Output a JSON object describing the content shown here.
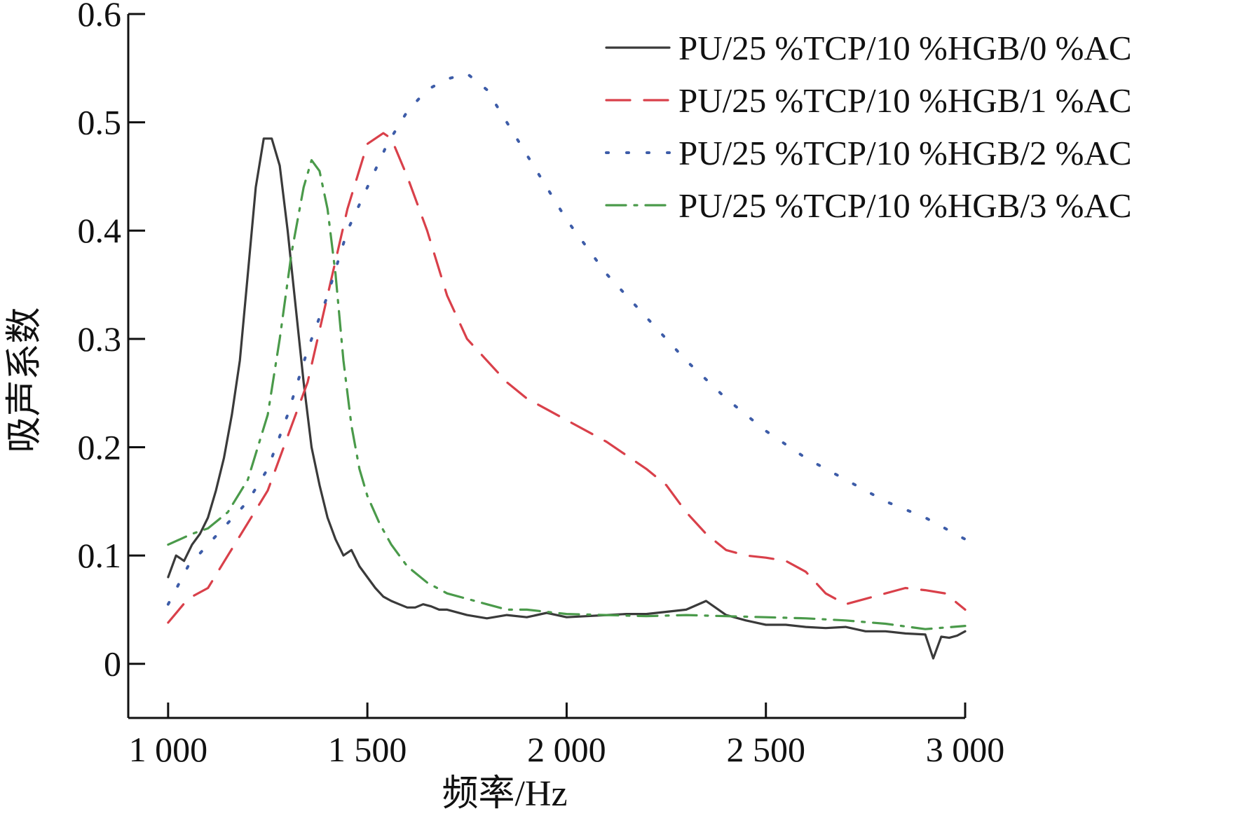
{
  "chart_data": {
    "type": "line",
    "title": "",
    "xlabel": "频率/Hz",
    "ylabel": "吸声系数",
    "xlim": [
      900,
      3000
    ],
    "ylim": [
      -0.05,
      0.6
    ],
    "x_ticks": [
      1000,
      1500,
      2000,
      2500,
      3000
    ],
    "x_tick_labels": [
      "1 000",
      "1 500",
      "2 000",
      "2 500",
      "3 000"
    ],
    "y_ticks": [
      0,
      0.1,
      0.2,
      0.3,
      0.4,
      0.5,
      0.6
    ],
    "y_tick_labels": [
      "0",
      "0.1",
      "0.2",
      "0.3",
      "0.4",
      "0.5",
      "0.6"
    ],
    "grid": false,
    "legend_position": "top-right",
    "series": [
      {
        "name": "PU/25 %TCP/10 %HGB/0 %AC",
        "color": "#3a3a3a",
        "dash": "solid",
        "x": [
          1000,
          1020,
          1040,
          1060,
          1080,
          1100,
          1120,
          1140,
          1160,
          1180,
          1200,
          1220,
          1240,
          1260,
          1280,
          1300,
          1320,
          1340,
          1360,
          1380,
          1400,
          1420,
          1440,
          1460,
          1480,
          1500,
          1520,
          1540,
          1560,
          1580,
          1600,
          1620,
          1640,
          1660,
          1680,
          1700,
          1750,
          1800,
          1850,
          1900,
          1950,
          2000,
          2050,
          2100,
          2150,
          2200,
          2250,
          2300,
          2350,
          2400,
          2450,
          2500,
          2550,
          2600,
          2650,
          2700,
          2750,
          2800,
          2850,
          2900,
          2920,
          2940,
          2960,
          2980,
          3000
        ],
        "values": [
          0.08,
          0.1,
          0.095,
          0.11,
          0.12,
          0.135,
          0.16,
          0.19,
          0.23,
          0.28,
          0.36,
          0.44,
          0.485,
          0.485,
          0.46,
          0.4,
          0.33,
          0.26,
          0.2,
          0.165,
          0.135,
          0.115,
          0.1,
          0.105,
          0.09,
          0.08,
          0.07,
          0.062,
          0.058,
          0.055,
          0.052,
          0.052,
          0.055,
          0.053,
          0.05,
          0.05,
          0.045,
          0.042,
          0.045,
          0.043,
          0.047,
          0.043,
          0.044,
          0.045,
          0.046,
          0.046,
          0.048,
          0.05,
          0.058,
          0.045,
          0.04,
          0.036,
          0.036,
          0.034,
          0.033,
          0.034,
          0.03,
          0.03,
          0.028,
          0.027,
          0.005,
          0.025,
          0.024,
          0.026,
          0.03
        ]
      },
      {
        "name": "PU/25 %TCP/10 %HGB/1 %AC",
        "color": "#d9404a",
        "dash": "long-dash",
        "x": [
          1000,
          1050,
          1100,
          1150,
          1200,
          1250,
          1300,
          1350,
          1400,
          1450,
          1500,
          1540,
          1560,
          1600,
          1650,
          1700,
          1750,
          1800,
          1850,
          1900,
          1950,
          2000,
          2100,
          2200,
          2250,
          2300,
          2350,
          2400,
          2450,
          2500,
          2550,
          2600,
          2650,
          2700,
          2750,
          2800,
          2850,
          2900,
          2950,
          3000
        ],
        "values": [
          0.038,
          0.06,
          0.07,
          0.1,
          0.13,
          0.16,
          0.21,
          0.26,
          0.34,
          0.42,
          0.48,
          0.49,
          0.485,
          0.45,
          0.4,
          0.34,
          0.3,
          0.28,
          0.26,
          0.245,
          0.235,
          0.225,
          0.205,
          0.18,
          0.165,
          0.14,
          0.12,
          0.105,
          0.1,
          0.098,
          0.095,
          0.085,
          0.065,
          0.055,
          0.06,
          0.065,
          0.07,
          0.068,
          0.065,
          0.05
        ]
      },
      {
        "name": "PU/25 %TCP/10 %HGB/2 %AC",
        "color": "#3d5ca8",
        "dash": "dotted",
        "x": [
          1000,
          1050,
          1100,
          1150,
          1200,
          1250,
          1300,
          1350,
          1400,
          1450,
          1500,
          1550,
          1600,
          1650,
          1700,
          1750,
          1800,
          1850,
          1900,
          1950,
          2000,
          2100,
          2200,
          2300,
          2400,
          2500,
          2600,
          2700,
          2800,
          2900,
          3000
        ],
        "values": [
          0.055,
          0.09,
          0.11,
          0.13,
          0.15,
          0.18,
          0.23,
          0.29,
          0.34,
          0.4,
          0.44,
          0.48,
          0.51,
          0.53,
          0.54,
          0.545,
          0.53,
          0.5,
          0.47,
          0.44,
          0.41,
          0.36,
          0.32,
          0.28,
          0.245,
          0.215,
          0.19,
          0.17,
          0.15,
          0.135,
          0.115
        ]
      },
      {
        "name": "PU/25 %TCP/10 %HGB/3 %AC",
        "color": "#4a9a4a",
        "dash": "dash-dot",
        "x": [
          1000,
          1030,
          1060,
          1100,
          1150,
          1200,
          1250,
          1280,
          1310,
          1340,
          1360,
          1380,
          1400,
          1420,
          1440,
          1460,
          1480,
          1500,
          1530,
          1560,
          1600,
          1650,
          1700,
          1750,
          1800,
          1850,
          1900,
          1950,
          2000,
          2100,
          2200,
          2300,
          2400,
          2500,
          2600,
          2700,
          2800,
          2900,
          3000
        ],
        "values": [
          0.11,
          0.115,
          0.12,
          0.125,
          0.14,
          0.17,
          0.23,
          0.3,
          0.38,
          0.44,
          0.465,
          0.455,
          0.42,
          0.36,
          0.28,
          0.22,
          0.18,
          0.155,
          0.13,
          0.11,
          0.09,
          0.075,
          0.065,
          0.06,
          0.055,
          0.05,
          0.05,
          0.048,
          0.046,
          0.045,
          0.044,
          0.045,
          0.044,
          0.043,
          0.042,
          0.04,
          0.037,
          0.032,
          0.035
        ]
      }
    ]
  }
}
